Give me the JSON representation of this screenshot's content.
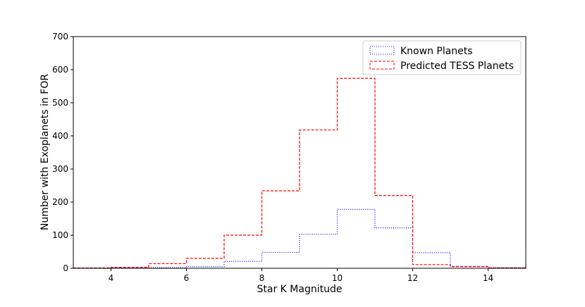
{
  "chart_data": {
    "type": "histogram-step",
    "xlabel": "Star K Magnitude",
    "ylabel": "Number with Exoplanets in FOR",
    "xlim": [
      3,
      15
    ],
    "ylim": [
      0,
      700
    ],
    "x_ticks": [
      4,
      6,
      8,
      10,
      12,
      14
    ],
    "y_ticks": [
      0,
      100,
      200,
      300,
      400,
      500,
      600,
      700
    ],
    "grid": false,
    "legend_position": "top-right",
    "bin_edges": [
      3,
      4,
      5,
      6,
      7,
      8,
      9,
      10,
      11,
      12,
      13,
      14,
      15
    ],
    "series": [
      {
        "name": "Known Planets",
        "color": "#0000ff",
        "line_style": "dotted",
        "values": [
          0,
          1,
          2,
          5,
          21,
          48,
          103,
          178,
          122,
          47,
          6,
          2
        ]
      },
      {
        "name": "Predicted TESS Planets",
        "color": "#ff0000",
        "line_style": "dashed",
        "values": [
          1,
          3,
          14,
          30,
          100,
          234,
          418,
          574,
          220,
          11,
          5,
          1
        ]
      }
    ]
  }
}
